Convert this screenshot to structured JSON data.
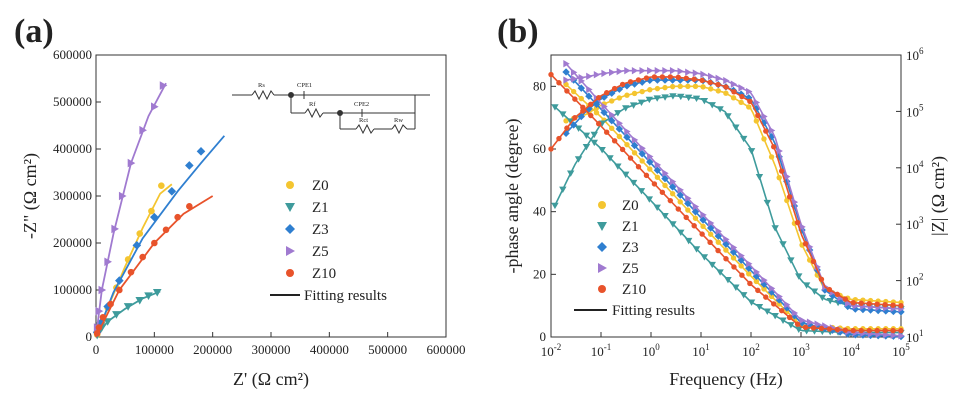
{
  "panel_a": {
    "label": "(a)",
    "circuit": {
      "labels": [
        "Rs",
        "CPE1",
        "Rf",
        "CPE2",
        "Rct",
        "Rw"
      ]
    },
    "chart_data": {
      "type": "scatter",
      "xlabel": "Z' (Ω cm²)",
      "ylabel": "-Z\" (Ω cm²)",
      "xlim": [
        0,
        600000
      ],
      "ylim": [
        0,
        600000
      ],
      "x_ticks": [
        "0",
        "100000",
        "200000",
        "300000",
        "400000",
        "500000",
        "600000"
      ],
      "y_ticks": [
        "0",
        "100000",
        "200000",
        "300000",
        "400000",
        "500000",
        "600000"
      ],
      "grid": false,
      "legend_position": "center-right",
      "legend_fit_label": "Fitting results",
      "series": [
        {
          "name": "Z0",
          "color": "#f4c530",
          "marker": "circle",
          "points": [
            [
              2000,
              5000
            ],
            [
              5000,
              15000
            ],
            [
              10000,
              30000
            ],
            [
              20000,
              62000
            ],
            [
              35000,
              105000
            ],
            [
              55000,
              165000
            ],
            [
              75000,
              220000
            ],
            [
              95000,
              268000
            ],
            [
              112000,
              322000
            ]
          ],
          "fit": [
            [
              0,
              0
            ],
            [
              20000,
              62000
            ],
            [
              50000,
              150000
            ],
            [
              80000,
              232000
            ],
            [
              110000,
              305000
            ],
            [
              130000,
              325000
            ]
          ]
        },
        {
          "name": "Z1",
          "color": "#3e9b9c",
          "marker": "triangle-down",
          "points": [
            [
              2000,
              4000
            ],
            [
              5000,
              12000
            ],
            [
              10000,
              20000
            ],
            [
              20000,
              33000
            ],
            [
              35000,
              48000
            ],
            [
              55000,
              65000
            ],
            [
              75000,
              78000
            ],
            [
              90000,
              88000
            ],
            [
              105000,
              95000
            ]
          ],
          "fit": [
            [
              0,
              0
            ],
            [
              20000,
              33000
            ],
            [
              50000,
              60000
            ],
            [
              80000,
              82000
            ],
            [
              110000,
              97000
            ]
          ]
        },
        {
          "name": "Z3",
          "color": "#2f7fd0",
          "marker": "diamond",
          "points": [
            [
              2000,
              10000
            ],
            [
              8000,
              30000
            ],
            [
              20000,
              65000
            ],
            [
              40000,
              120000
            ],
            [
              70000,
              195000
            ],
            [
              100000,
              255000
            ],
            [
              130000,
              310000
            ],
            [
              160000,
              365000
            ],
            [
              180000,
              395000
            ]
          ],
          "fit": [
            [
              0,
              0
            ],
            [
              30000,
              95000
            ],
            [
              80000,
              210000
            ],
            [
              140000,
              310000
            ],
            [
              180000,
              370000
            ],
            [
              220000,
              428000
            ]
          ]
        },
        {
          "name": "Z5",
          "color": "#a07ad0",
          "marker": "triangle-right",
          "points": [
            [
              2000,
              20000
            ],
            [
              5000,
              55000
            ],
            [
              10000,
              100000
            ],
            [
              20000,
              160000
            ],
            [
              32000,
              230000
            ],
            [
              45000,
              300000
            ],
            [
              60000,
              370000
            ],
            [
              80000,
              440000
            ],
            [
              100000,
              490000
            ],
            [
              115000,
              535000
            ]
          ],
          "fit": [
            [
              0,
              0
            ],
            [
              10000,
              100000
            ],
            [
              30000,
              220000
            ],
            [
              60000,
              370000
            ],
            [
              90000,
              470000
            ],
            [
              120000,
              540000
            ]
          ]
        },
        {
          "name": "Z10",
          "color": "#e8532b",
          "marker": "circle",
          "points": [
            [
              2000,
              8000
            ],
            [
              5000,
              20000
            ],
            [
              12000,
              42000
            ],
            [
              25000,
              70000
            ],
            [
              40000,
              100000
            ],
            [
              60000,
              138000
            ],
            [
              80000,
              170000
            ],
            [
              100000,
              200000
            ],
            [
              120000,
              228000
            ],
            [
              140000,
              255000
            ],
            [
              160000,
              278000
            ]
          ],
          "fit": [
            [
              0,
              0
            ],
            [
              40000,
              100000
            ],
            [
              100000,
              200000
            ],
            [
              150000,
              262000
            ],
            [
              200000,
              300000
            ]
          ]
        }
      ]
    }
  },
  "panel_b": {
    "label": "(b)",
    "chart_data": {
      "type": "line",
      "xlabel": "Frequency (Hz)",
      "ylabel_left": "-phase angle (degree)",
      "ylabel_right": "|Z| (Ω cm²)",
      "x_scale": "log",
      "xlim": [
        0.01,
        100000
      ],
      "ylim_left": [
        0,
        90
      ],
      "ylim_right": [
        10,
        1000000
      ],
      "y_left_ticks": [
        "0",
        "20",
        "40",
        "60",
        "80"
      ],
      "x_ticks": [
        {
          "base": "10",
          "exp": "-2"
        },
        {
          "base": "10",
          "exp": "-1"
        },
        {
          "base": "10",
          "exp": "0"
        },
        {
          "base": "10",
          "exp": "1"
        },
        {
          "base": "10",
          "exp": "2"
        },
        {
          "base": "10",
          "exp": "3"
        },
        {
          "base": "10",
          "exp": "4"
        },
        {
          "base": "10",
          "exp": "5"
        }
      ],
      "y_right_ticks": [
        {
          "base": "10",
          "exp": "1"
        },
        {
          "base": "10",
          "exp": "2"
        },
        {
          "base": "10",
          "exp": "3"
        },
        {
          "base": "10",
          "exp": "4"
        },
        {
          "base": "10",
          "exp": "5"
        },
        {
          "base": "10",
          "exp": "6"
        }
      ],
      "grid": false,
      "legend_position": "bottom-left",
      "legend_fit_label": "Fitting results",
      "series": [
        {
          "name": "Z0",
          "color": "#f4c530",
          "marker": "circle",
          "phase": [
            [
              0.02,
              69
            ],
            [
              0.05,
              71
            ],
            [
              0.1,
              74
            ],
            [
              0.3,
              77
            ],
            [
              1,
              79
            ],
            [
              3,
              80
            ],
            [
              10,
              80
            ],
            [
              30,
              78
            ],
            [
              100,
              73
            ],
            [
              300,
              55
            ],
            [
              1000,
              30
            ],
            [
              3000,
              15
            ],
            [
              10000,
              12
            ],
            [
              100000,
              11
            ]
          ],
          "modulus": [
            [
              0.02,
              300000
            ],
            [
              0.1,
              80000
            ],
            [
              1,
              9000
            ],
            [
              10,
              1000
            ],
            [
              100,
              120
            ],
            [
              1000,
              16
            ],
            [
              10000,
              14
            ],
            [
              100000,
              14
            ]
          ]
        },
        {
          "name": "Z1",
          "color": "#3e9b9c",
          "marker": "triangle-down",
          "phase": [
            [
              0.012,
              42
            ],
            [
              0.03,
              55
            ],
            [
              0.1,
              68
            ],
            [
              0.3,
              73
            ],
            [
              1,
              76
            ],
            [
              3,
              77
            ],
            [
              10,
              76
            ],
            [
              30,
              72
            ],
            [
              100,
              60
            ],
            [
              300,
              35
            ],
            [
              1000,
              18
            ],
            [
              3000,
              12
            ],
            [
              10000,
              10
            ],
            [
              100000,
              9
            ]
          ],
          "modulus": [
            [
              0.012,
              120000
            ],
            [
              0.1,
              22000
            ],
            [
              1,
              2600
            ],
            [
              10,
              300
            ],
            [
              100,
              42
            ],
            [
              1000,
              13
            ],
            [
              10000,
              12
            ],
            [
              100000,
              12
            ]
          ]
        },
        {
          "name": "Z3",
          "color": "#2f7fd0",
          "marker": "diamond",
          "phase": [
            [
              0.02,
              65
            ],
            [
              0.05,
              72
            ],
            [
              0.1,
              76
            ],
            [
              0.3,
              80
            ],
            [
              1,
              82
            ],
            [
              3,
              82
            ],
            [
              10,
              82
            ],
            [
              30,
              80
            ],
            [
              100,
              76
            ],
            [
              300,
              62
            ],
            [
              1000,
              35
            ],
            [
              3000,
              15
            ],
            [
              10000,
              9
            ],
            [
              100000,
              8
            ]
          ],
          "modulus": [
            [
              0.02,
              500000
            ],
            [
              0.1,
              110000
            ],
            [
              1,
              12000
            ],
            [
              10,
              1300
            ],
            [
              100,
              150
            ],
            [
              1000,
              18
            ],
            [
              10000,
              11
            ],
            [
              100000,
              10.2
            ]
          ]
        },
        {
          "name": "Z5",
          "color": "#a07ad0",
          "marker": "triangle-right",
          "phase": [
            [
              0.02,
              82
            ],
            [
              0.05,
              83
            ],
            [
              0.1,
              84
            ],
            [
              0.3,
              85
            ],
            [
              1,
              85
            ],
            [
              3,
              85
            ],
            [
              10,
              84
            ],
            [
              30,
              82
            ],
            [
              100,
              78
            ],
            [
              300,
              64
            ],
            [
              1000,
              36
            ],
            [
              3000,
              16
            ],
            [
              10000,
              10
            ],
            [
              100000,
              9
            ]
          ],
          "modulus": [
            [
              0.02,
              700000
            ],
            [
              0.1,
              140000
            ],
            [
              1,
              15000
            ],
            [
              10,
              1600
            ],
            [
              100,
              180
            ],
            [
              1000,
              20
            ],
            [
              10000,
              12
            ],
            [
              100000,
              10.5
            ]
          ]
        },
        {
          "name": "Z10",
          "color": "#e8532b",
          "marker": "circle",
          "phase": [
            [
              0.01,
              60
            ],
            [
              0.03,
              70
            ],
            [
              0.1,
              77
            ],
            [
              0.3,
              81
            ],
            [
              1,
              83
            ],
            [
              3,
              83
            ],
            [
              10,
              82
            ],
            [
              30,
              80
            ],
            [
              100,
              75
            ],
            [
              300,
              60
            ],
            [
              1000,
              33
            ],
            [
              3000,
              16
            ],
            [
              10000,
              11
            ],
            [
              100000,
              10
            ]
          ],
          "modulus": [
            [
              0.01,
              450000
            ],
            [
              0.1,
              55000
            ],
            [
              1,
              6000
            ],
            [
              10,
              700
            ],
            [
              100,
              85
            ],
            [
              1000,
              15
            ],
            [
              10000,
              13
            ],
            [
              100000,
              13
            ]
          ]
        }
      ]
    }
  }
}
